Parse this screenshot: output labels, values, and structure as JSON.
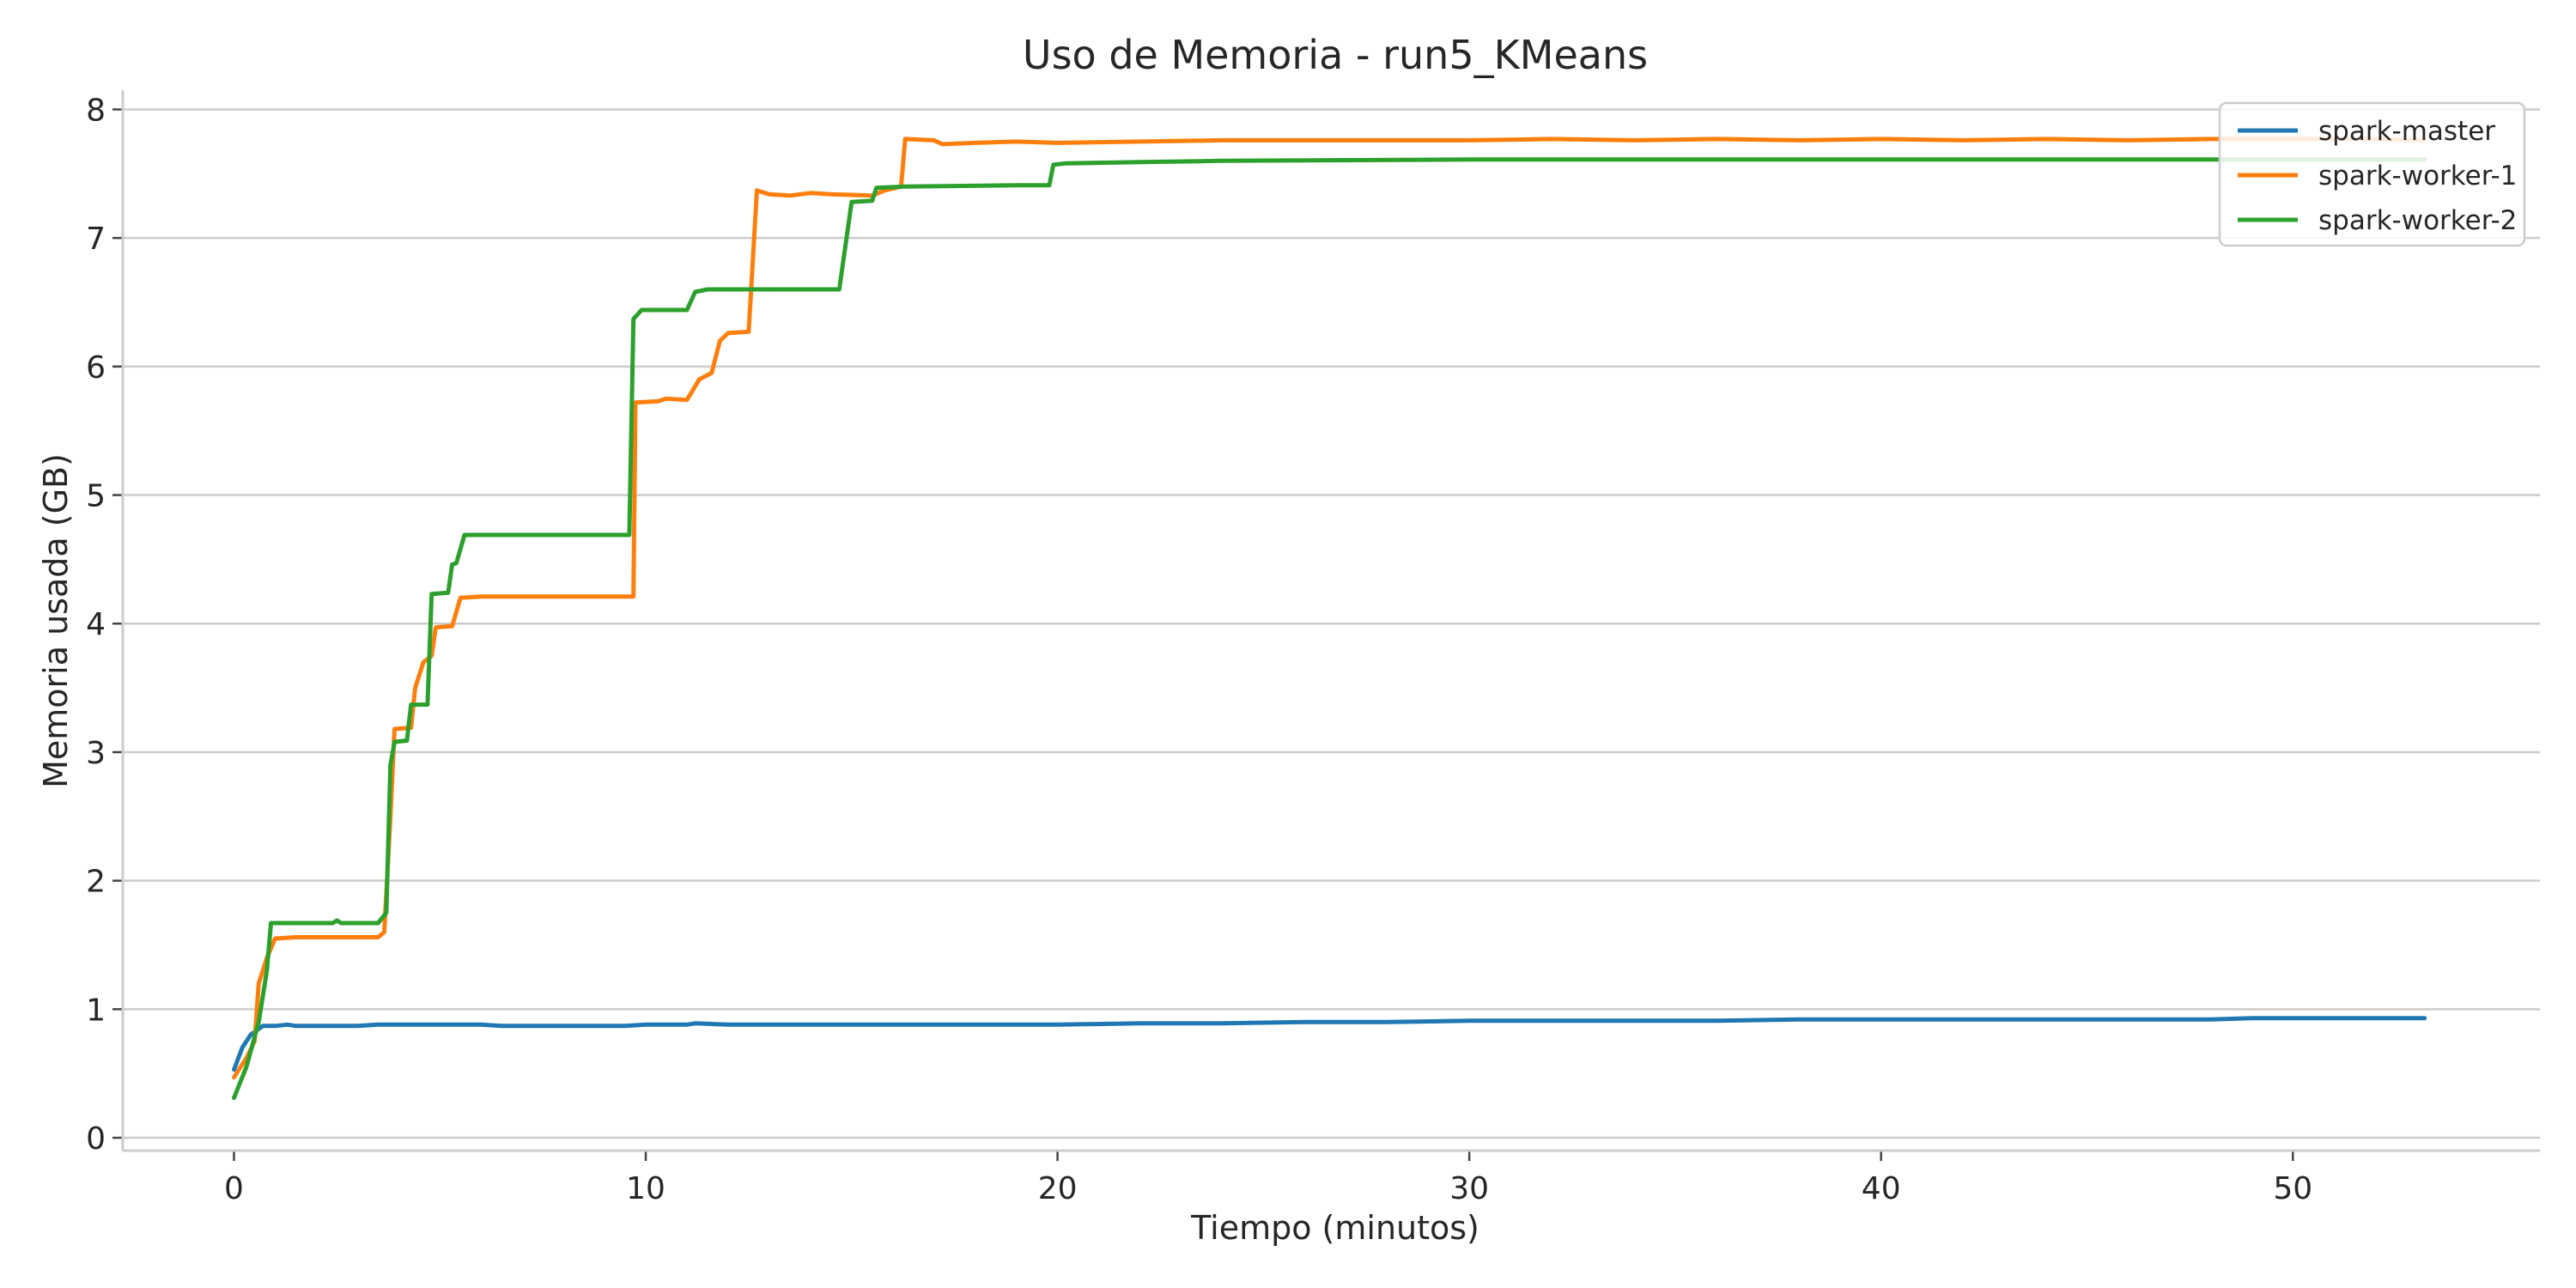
{
  "chart_data": {
    "type": "line",
    "title": "Uso de Memoria - run5_KMeans",
    "xlabel": "Tiempo (minutos)",
    "ylabel": "Memoria usada (GB)",
    "xlim": [
      -2.7,
      56
    ],
    "ylim": [
      -0.1,
      8.15
    ],
    "xticks": [
      0,
      10,
      20,
      30,
      40,
      50
    ],
    "yticks": [
      0,
      1,
      2,
      3,
      4,
      5,
      6,
      7,
      8
    ],
    "grid": "horizontal",
    "legend_position": "top-right",
    "series": [
      {
        "name": "spark-master",
        "color": "#1f77b4",
        "points": [
          [
            0,
            0.53
          ],
          [
            0.2,
            0.7
          ],
          [
            0.4,
            0.8
          ],
          [
            0.7,
            0.87
          ],
          [
            1.0,
            0.87
          ],
          [
            1.3,
            0.88
          ],
          [
            1.5,
            0.87
          ],
          [
            3,
            0.87
          ],
          [
            3.5,
            0.88
          ],
          [
            6,
            0.88
          ],
          [
            6.5,
            0.87
          ],
          [
            9.5,
            0.87
          ],
          [
            10,
            0.88
          ],
          [
            11,
            0.88
          ],
          [
            11.2,
            0.89
          ],
          [
            12,
            0.88
          ],
          [
            14,
            0.88
          ],
          [
            14.5,
            0.88
          ],
          [
            15,
            0.88
          ],
          [
            20,
            0.88
          ],
          [
            22,
            0.89
          ],
          [
            24,
            0.89
          ],
          [
            26,
            0.9
          ],
          [
            27,
            0.9
          ],
          [
            28,
            0.9
          ],
          [
            30,
            0.91
          ],
          [
            32,
            0.91
          ],
          [
            34,
            0.91
          ],
          [
            36,
            0.91
          ],
          [
            38,
            0.92
          ],
          [
            40,
            0.92
          ],
          [
            42,
            0.92
          ],
          [
            44,
            0.92
          ],
          [
            46,
            0.92
          ],
          [
            48,
            0.92
          ],
          [
            49,
            0.93
          ],
          [
            50,
            0.93
          ],
          [
            51,
            0.93
          ],
          [
            52,
            0.93
          ],
          [
            53.2,
            0.93
          ]
        ]
      },
      {
        "name": "spark-worker-1",
        "color": "#ff7f0e",
        "points": [
          [
            0,
            0.47
          ],
          [
            0.3,
            0.62
          ],
          [
            0.5,
            0.75
          ],
          [
            0.6,
            1.2
          ],
          [
            0.8,
            1.4
          ],
          [
            1.0,
            1.55
          ],
          [
            1.5,
            1.56
          ],
          [
            2.5,
            1.56
          ],
          [
            3.5,
            1.56
          ],
          [
            3.65,
            1.6
          ],
          [
            3.8,
            2.5
          ],
          [
            3.9,
            3.18
          ],
          [
            4.3,
            3.19
          ],
          [
            4.4,
            3.5
          ],
          [
            4.6,
            3.7
          ],
          [
            4.8,
            3.75
          ],
          [
            4.9,
            3.97
          ],
          [
            5.3,
            3.98
          ],
          [
            5.5,
            4.2
          ],
          [
            6,
            4.21
          ],
          [
            9.7,
            4.21
          ],
          [
            9.75,
            5.72
          ],
          [
            10.3,
            5.73
          ],
          [
            10.5,
            5.75
          ],
          [
            11,
            5.74
          ],
          [
            11.3,
            5.9
          ],
          [
            11.6,
            5.95
          ],
          [
            11.8,
            6.2
          ],
          [
            12,
            6.26
          ],
          [
            12.5,
            6.27
          ],
          [
            12.7,
            7.37
          ],
          [
            13,
            7.34
          ],
          [
            13.5,
            7.33
          ],
          [
            14,
            7.35
          ],
          [
            14.5,
            7.34
          ],
          [
            15.5,
            7.33
          ],
          [
            15.8,
            7.37
          ],
          [
            16.2,
            7.4
          ],
          [
            16.3,
            7.77
          ],
          [
            17,
            7.76
          ],
          [
            17.2,
            7.73
          ],
          [
            18,
            7.74
          ],
          [
            19,
            7.75
          ],
          [
            20,
            7.74
          ],
          [
            22,
            7.75
          ],
          [
            24,
            7.76
          ],
          [
            26,
            7.76
          ],
          [
            28,
            7.76
          ],
          [
            30,
            7.76
          ],
          [
            32,
            7.77
          ],
          [
            34,
            7.76
          ],
          [
            36,
            7.77
          ],
          [
            38,
            7.76
          ],
          [
            40,
            7.77
          ],
          [
            42,
            7.76
          ],
          [
            44,
            7.77
          ],
          [
            46,
            7.76
          ],
          [
            48,
            7.77
          ],
          [
            50,
            7.77
          ],
          [
            52,
            7.77
          ],
          [
            53.2,
            7.76
          ]
        ]
      },
      {
        "name": "spark-worker-2",
        "color": "#2ca02c",
        "points": [
          [
            0,
            0.31
          ],
          [
            0.3,
            0.55
          ],
          [
            0.6,
            0.9
          ],
          [
            0.8,
            1.3
          ],
          [
            0.9,
            1.67
          ],
          [
            2.4,
            1.67
          ],
          [
            2.5,
            1.69
          ],
          [
            2.6,
            1.67
          ],
          [
            3.5,
            1.67
          ],
          [
            3.7,
            1.75
          ],
          [
            3.8,
            2.9
          ],
          [
            3.9,
            3.08
          ],
          [
            4.2,
            3.09
          ],
          [
            4.3,
            3.37
          ],
          [
            4.7,
            3.37
          ],
          [
            4.8,
            4.23
          ],
          [
            5.2,
            4.24
          ],
          [
            5.3,
            4.46
          ],
          [
            5.4,
            4.47
          ],
          [
            5.6,
            4.69
          ],
          [
            9.6,
            4.69
          ],
          [
            9.7,
            6.37
          ],
          [
            9.9,
            6.44
          ],
          [
            11,
            6.44
          ],
          [
            11.2,
            6.58
          ],
          [
            11.5,
            6.6
          ],
          [
            14.7,
            6.6
          ],
          [
            15,
            7.28
          ],
          [
            15.5,
            7.29
          ],
          [
            15.6,
            7.39
          ],
          [
            16.3,
            7.4
          ],
          [
            19,
            7.41
          ],
          [
            19.8,
            7.41
          ],
          [
            19.9,
            7.57
          ],
          [
            20.2,
            7.58
          ],
          [
            22,
            7.59
          ],
          [
            24,
            7.6
          ],
          [
            30,
            7.61
          ],
          [
            35,
            7.61
          ],
          [
            40,
            7.61
          ],
          [
            45,
            7.61
          ],
          [
            50,
            7.61
          ],
          [
            53.2,
            7.61
          ]
        ]
      }
    ]
  }
}
